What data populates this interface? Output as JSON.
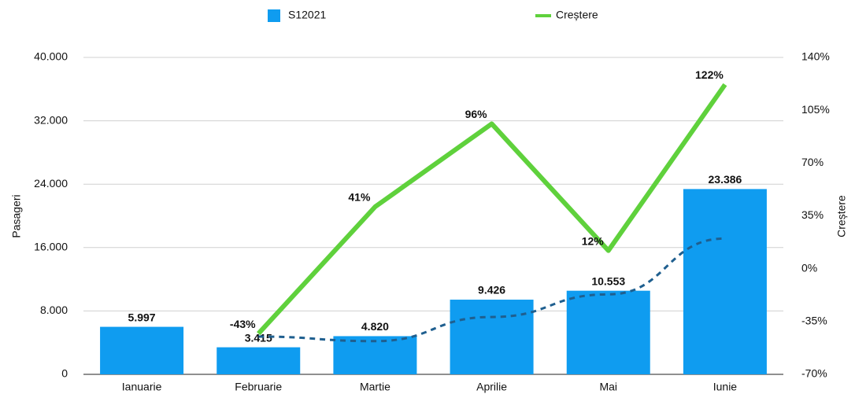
{
  "chart_data": {
    "type": "bar",
    "categories": [
      "Ianuarie",
      "Februarie",
      "Martie",
      "Aprilie",
      "Mai",
      "Iunie"
    ],
    "ylabel": "Pasageri",
    "y2label": "Creștere",
    "ylim": [
      0,
      40000
    ],
    "yticks": [
      0,
      {
        "value": 8000,
        "label": "8.000"
      },
      {
        "value": 16000,
        "label": "16.000"
      },
      {
        "value": 24000,
        "label": "24.000"
      },
      {
        "value": 32000,
        "label": "32.000"
      },
      {
        "value": 40000,
        "label": "40.000"
      }
    ],
    "y2lim": [
      -70,
      140
    ],
    "y2ticks": [
      {
        "value": -70,
        "label": "-70%"
      },
      {
        "value": -35,
        "label": "-35%"
      },
      {
        "value": 0,
        "label": "0%"
      },
      {
        "value": 35,
        "label": "35%"
      },
      {
        "value": 70,
        "label": "70%"
      },
      {
        "value": 105,
        "label": "105%"
      },
      {
        "value": 140,
        "label": "140%"
      }
    ],
    "grid": true,
    "legend": "top",
    "series": [
      {
        "name": "S12021",
        "type": "bar",
        "color": "#0f9cf0",
        "values": [
          5997,
          3415,
          4820,
          9426,
          10553,
          23386
        ],
        "value_labels": [
          "5.997",
          "3.415",
          "4.820",
          "9.426",
          "10.553",
          "23.386"
        ]
      },
      {
        "name": "Creștere",
        "type": "line",
        "axis": "y2",
        "color": "#5fd13c",
        "values": [
          null,
          -43,
          41,
          96,
          12,
          122
        ],
        "value_labels": [
          null,
          "-43%",
          "41%",
          "96%",
          "12%",
          "122%"
        ],
        "trendline": {
          "color": "#1f5f8f",
          "values": [
            null,
            -45,
            -48,
            -32,
            -17,
            20
          ]
        }
      }
    ]
  }
}
